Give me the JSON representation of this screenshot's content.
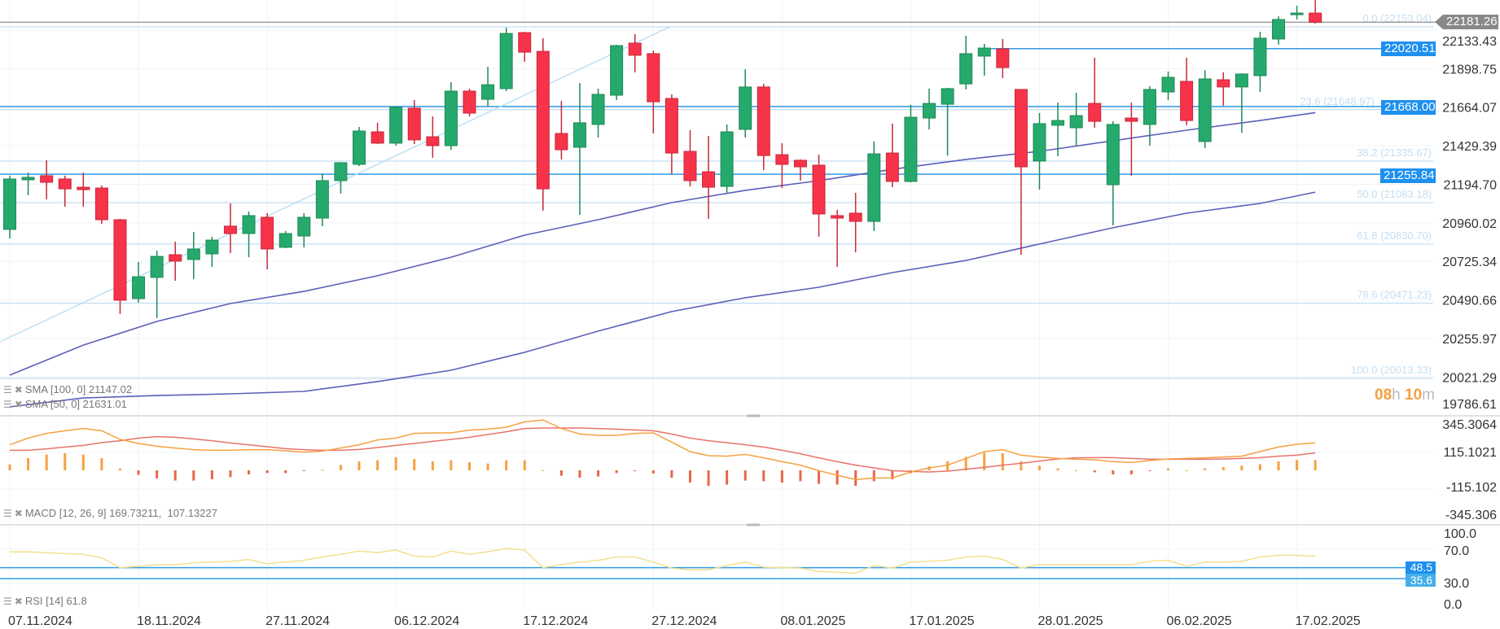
{
  "colors": {
    "up": "#26a96c",
    "up_border": "#1f8a57",
    "down": "#f7334a",
    "down_border": "#c8283a",
    "sma": "#5c5fb8",
    "fib": "#c3def2",
    "hline": "#2f9be6",
    "tag_blue": "#1e90ef",
    "tag_gray": "#888888",
    "macd": "#f5a142",
    "signal": "#e8736a",
    "hist_pos": "#f5a142",
    "hist_neg": "#e8664a",
    "rsi": "#f2e08e",
    "trendline": "#b9dff5",
    "grid": "#f1f3f5"
  },
  "price_tag": "22181.26",
  "countdown": {
    "hours": "08",
    "h": "h",
    "minutes": "10",
    "m": "m"
  },
  "legends": {
    "sma100": "SMA [100, 0] 21147.02",
    "sma50": "SMA [50, 0] 21631.01",
    "macd": "MACD [12, 26, 9] 169.73211,  107.13227",
    "rsi": "RSI [14] 61.8"
  },
  "horizontal_lines": [
    {
      "value": 22020.51,
      "label": "22020.51",
      "from_bar": 54
    },
    {
      "value": 21668.0,
      "label": "21668.00",
      "from_bar": 1
    },
    {
      "value": 21255.84,
      "label": "21255.84",
      "from_bar": 1
    }
  ],
  "rsi_lines": [
    {
      "value": 48.5,
      "label": "48.5"
    },
    {
      "value": 35.6,
      "label": "35.6"
    }
  ],
  "fibonacci": [
    {
      "label": "0.0 (22153.04)",
      "value": 22153.04
    },
    {
      "label": "23.6 (21648.97)",
      "value": 21648.97
    },
    {
      "label": "38.2 (21335.67)",
      "value": 21335.67
    },
    {
      "label": "50.0 (21083.18)",
      "value": 21083.18
    },
    {
      "label": "61.8 (20830.70)",
      "value": 20830.7
    },
    {
      "label": "78.6 (20471.23)",
      "value": 20471.23
    },
    {
      "label": "100.0 (20013.33)",
      "value": 20013.33
    }
  ],
  "chart_data": [
    {
      "type": "candlestick",
      "ohlc_fields": [
        "open",
        "high",
        "low",
        "close"
      ],
      "ylim": [
        19785.5,
        22316.5
      ],
      "y_ticks": [
        "22133.43",
        "21898.75",
        "21664.07",
        "21429.39",
        "21194.70",
        "20960.02",
        "20725.34",
        "20490.66",
        "20255.97",
        "20021.29",
        "19786.61"
      ],
      "x_ticks": [
        {
          "bar": 1,
          "label": "07.11.2024"
        },
        {
          "bar": 8,
          "label": "18.11.2024"
        },
        {
          "bar": 15,
          "label": "27.11.2024"
        },
        {
          "bar": 22,
          "label": "06.12.2024"
        },
        {
          "bar": 29,
          "label": "17.12.2024"
        },
        {
          "bar": 36,
          "label": "27.12.2024"
        },
        {
          "bar": 43,
          "label": "08.01.2025"
        },
        {
          "bar": 50,
          "label": "17.01.2025"
        },
        {
          "bar": 57,
          "label": "28.01.2025"
        },
        {
          "bar": 64,
          "label": "06.02.2025"
        },
        {
          "bar": 71,
          "label": "17.02.2025"
        }
      ],
      "candles": [
        [
          20920,
          21247,
          20865,
          21227
        ],
        [
          21222,
          21266,
          21128,
          21237
        ],
        [
          21247,
          21341,
          21103,
          21207
        ],
        [
          21227,
          21247,
          21058,
          21167
        ],
        [
          21177,
          21266,
          21058,
          21162
        ],
        [
          21172,
          21187,
          20954,
          20979
        ],
        [
          20979,
          20984,
          20405,
          20489
        ],
        [
          20499,
          20722,
          20474,
          20632
        ],
        [
          20628,
          20791,
          20380,
          20756
        ],
        [
          20766,
          20846,
          20608,
          20727
        ],
        [
          20737,
          20905,
          20618,
          20801
        ],
        [
          20771,
          20875,
          20692,
          20855
        ],
        [
          20940,
          21078,
          20776,
          20895
        ],
        [
          20895,
          21029,
          20751,
          21004
        ],
        [
          20994,
          21019,
          20677,
          20801
        ],
        [
          20811,
          20910,
          20806,
          20895
        ],
        [
          20880,
          21019,
          20811,
          20994
        ],
        [
          20989,
          21261,
          20940,
          21217
        ],
        [
          21217,
          21330,
          21138,
          21326
        ],
        [
          21316,
          21544,
          21306,
          21519
        ],
        [
          21514,
          21569,
          21440,
          21445
        ],
        [
          21445,
          21668,
          21430,
          21663
        ],
        [
          21658,
          21707,
          21440,
          21465
        ],
        [
          21484,
          21608,
          21356,
          21430
        ],
        [
          21430,
          21816,
          21405,
          21762
        ],
        [
          21762,
          21777,
          21608,
          21628
        ],
        [
          21712,
          21910,
          21668,
          21801
        ],
        [
          21777,
          22148,
          21762,
          22113
        ],
        [
          22118,
          22123,
          21940,
          21999
        ],
        [
          22004,
          22084,
          21034,
          21167
        ],
        [
          21504,
          21702,
          21346,
          21405
        ],
        [
          21420,
          21811,
          21009,
          21569
        ],
        [
          21559,
          21777,
          21479,
          21742
        ],
        [
          21737,
          22044,
          21707,
          22039
        ],
        [
          22054,
          22108,
          21876,
          21980
        ],
        [
          21990,
          22009,
          21504,
          21697
        ],
        [
          21717,
          21742,
          21257,
          21385
        ],
        [
          21395,
          21524,
          21182,
          21217
        ],
        [
          21271,
          21489,
          20984,
          21177
        ],
        [
          21182,
          21559,
          21143,
          21514
        ],
        [
          21529,
          21895,
          21479,
          21787
        ],
        [
          21787,
          21806,
          21281,
          21370
        ],
        [
          21375,
          21445,
          21172,
          21316
        ],
        [
          21341,
          21346,
          21217,
          21301
        ],
        [
          21311,
          21375,
          20875,
          21014
        ],
        [
          21004,
          21039,
          20692,
          20989
        ],
        [
          21019,
          21143,
          20781,
          20969
        ],
        [
          20969,
          21455,
          20910,
          21380
        ],
        [
          21385,
          21564,
          21177,
          21212
        ],
        [
          21212,
          21678,
          21207,
          21603
        ],
        [
          21598,
          21777,
          21529,
          21687
        ],
        [
          21682,
          21782,
          21370,
          21777
        ],
        [
          21806,
          22099,
          21772,
          21990
        ],
        [
          21975,
          22049,
          21856,
          22024
        ],
        [
          22019,
          22079,
          21841,
          21905
        ],
        [
          21772,
          21772,
          20766,
          21301
        ],
        [
          21336,
          21628,
          21162,
          21564
        ],
        [
          21554,
          21692,
          21365,
          21583
        ],
        [
          21539,
          21752,
          21425,
          21613
        ],
        [
          21687,
          21965,
          21539,
          21578
        ],
        [
          21192,
          21578,
          20945,
          21559
        ],
        [
          21598,
          21692,
          21247,
          21578
        ],
        [
          21559,
          21791,
          21430,
          21772
        ],
        [
          21757,
          21881,
          21707,
          21846
        ],
        [
          21821,
          21965,
          21554,
          21583
        ],
        [
          21455,
          21890,
          21415,
          21836
        ],
        [
          21831,
          21876,
          21673,
          21787
        ],
        [
          21787,
          21870,
          21509,
          21866
        ],
        [
          21856,
          22123,
          21757,
          22084
        ],
        [
          22079,
          22217,
          22044,
          22198
        ],
        [
          22227,
          22282,
          22198,
          22237
        ],
        [
          22237,
          22316,
          22173,
          22181.26
        ]
      ],
      "current_price": 22181.26,
      "sma": {
        "sample_bars": [
          1,
          5,
          9,
          13,
          17,
          21,
          25,
          29,
          33,
          37,
          41,
          45,
          49,
          53,
          57,
          61,
          65,
          69,
          72
        ],
        "sma50": [
          20033,
          20216,
          20360,
          20469,
          20543,
          20638,
          20751,
          20885,
          20979,
          21083,
          21158,
          21217,
          21286,
          21346,
          21395,
          21460,
          21524,
          21583,
          21631.01
        ],
        "sma100": [
          19840,
          19894,
          19909,
          19919,
          19934,
          19994,
          20063,
          20172,
          20301,
          20420,
          20504,
          20568,
          20657,
          20731,
          20831,
          20930,
          21019,
          21078,
          21147.02
        ]
      },
      "trendline": [
        {
          "bar": 0.47,
          "price": 20236
        },
        {
          "bar": 36.9,
          "price": 22153
        }
      ]
    },
    {
      "type": "macd",
      "ylim": [
        -345.3064,
        345.3064
      ],
      "y_ticks": [
        "345.3064",
        "115.1021",
        "-115.102",
        "-345.306"
      ],
      "macd": [
        157,
        198,
        227,
        243,
        257,
        243,
        190,
        165,
        148,
        137,
        127,
        123,
        123,
        127,
        127,
        120,
        112,
        118,
        137,
        157,
        187,
        198,
        227,
        230,
        230,
        247,
        253,
        265,
        298,
        310,
        257,
        223,
        215,
        215,
        227,
        230,
        173,
        115,
        90,
        87,
        98,
        77,
        53,
        32,
        -2,
        -30,
        -57,
        -47,
        -47,
        -10,
        15,
        32,
        73,
        115,
        127,
        93,
        82,
        73,
        68,
        65,
        53,
        48,
        60,
        70,
        73,
        77,
        82,
        87,
        115,
        143,
        160,
        169.73
      ],
      "signal": [
        123,
        123,
        132,
        143,
        153,
        170,
        182,
        198,
        207,
        203,
        193,
        182,
        168,
        157,
        145,
        133,
        127,
        123,
        123,
        128,
        140,
        153,
        165,
        178,
        190,
        203,
        220,
        237,
        257,
        260,
        260,
        260,
        257,
        253,
        248,
        243,
        223,
        198,
        182,
        170,
        157,
        143,
        123,
        102,
        77,
        53,
        32,
        15,
        -2,
        -7,
        -10,
        -5,
        7,
        18,
        32,
        43,
        57,
        70,
        77,
        78,
        78,
        73,
        68,
        68,
        68,
        68,
        70,
        73,
        78,
        87,
        93,
        107.13
      ],
      "histogram": [
        37,
        75,
        97,
        105,
        97,
        75,
        12,
        -28,
        -50,
        -63,
        -63,
        -55,
        -42,
        -25,
        -17,
        -17,
        -3,
        3,
        33,
        55,
        62,
        80,
        70,
        55,
        62,
        50,
        42,
        62,
        62,
        0,
        -33,
        -45,
        -38,
        -17,
        -3,
        -20,
        -45,
        -75,
        -95,
        -88,
        -63,
        -67,
        -75,
        -67,
        -83,
        -88,
        -95,
        -67,
        -55,
        -17,
        25,
        55,
        83,
        108,
        105,
        55,
        28,
        12,
        0,
        -12,
        -25,
        -25,
        -3,
        12,
        0,
        12,
        20,
        28,
        38,
        55,
        63,
        63
      ]
    },
    {
      "type": "line",
      "ylim": [
        0,
        100
      ],
      "y_ticks": [
        "100.0",
        "70.0",
        "30.0",
        "0.0"
      ],
      "rsi": [
        66.9,
        67,
        66,
        65,
        64,
        60,
        48.5,
        50,
        52,
        52,
        54,
        55,
        56,
        58,
        53,
        55,
        57,
        61,
        64,
        68,
        66,
        69,
        62,
        61,
        68,
        64,
        67,
        71,
        69,
        48.5,
        52,
        55,
        57,
        61,
        61,
        55,
        48,
        46,
        46,
        51,
        55,
        49,
        48.5,
        48,
        44,
        43,
        42,
        51,
        48,
        55,
        56,
        57,
        61,
        62,
        58,
        48,
        52,
        52,
        52,
        52,
        52,
        52,
        56,
        57,
        50,
        55,
        55,
        56,
        61,
        63,
        63,
        61.8
      ]
    }
  ]
}
